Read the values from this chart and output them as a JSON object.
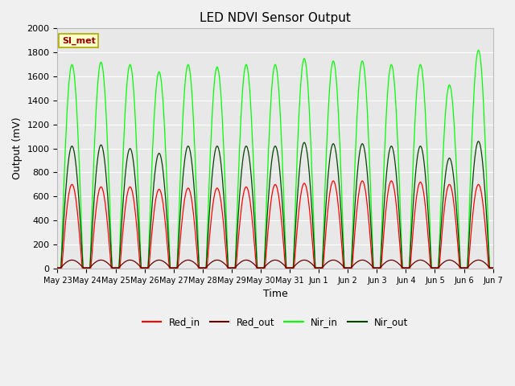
{
  "title": "LED NDVI Sensor Output",
  "xlabel": "Time",
  "ylabel": "Output (mV)",
  "ylim": [
    0,
    2000
  ],
  "background_color": "#f0f0f0",
  "plot_bg_color": "#e8e8e8",
  "annotation_text": "SI_met",
  "annotation_color": "#990000",
  "annotation_bg": "#ffffcc",
  "annotation_border": "#aaaa00",
  "x_tick_labels": [
    "May 23",
    "May 24",
    "May 25",
    "May 26",
    "May 27",
    "May 28",
    "May 29",
    "May 30",
    "May 31",
    "Jun 1",
    "Jun 2",
    "Jun 3",
    "Jun 4",
    "Jun 5",
    "Jun 6",
    "Jun 7"
  ],
  "red_in_color": "#ff0000",
  "red_out_color": "#660000",
  "nir_in_color": "#00ff00",
  "nir_out_color": "#004400",
  "num_cycles": 15,
  "red_in_peaks": [
    700,
    680,
    680,
    660,
    670,
    670,
    680,
    700,
    710,
    730,
    730,
    730,
    720,
    700,
    700
  ],
  "red_out_peaks": [
    70,
    70,
    70,
    70,
    70,
    70,
    70,
    70,
    70,
    70,
    70,
    70,
    70,
    70,
    70
  ],
  "nir_in_peaks": [
    1700,
    1720,
    1700,
    1640,
    1700,
    1680,
    1700,
    1700,
    1750,
    1730,
    1730,
    1700,
    1700,
    1530,
    1820
  ],
  "nir_out_peaks": [
    1020,
    1030,
    1000,
    960,
    1020,
    1020,
    1020,
    1020,
    1050,
    1040,
    1040,
    1020,
    1020,
    920,
    1060
  ]
}
